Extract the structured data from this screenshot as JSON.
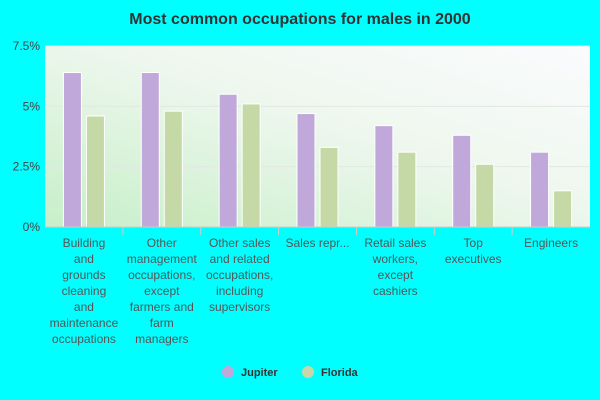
{
  "chart_data": {
    "type": "bar",
    "title": "Most common occupations for males in 2000",
    "categories": [
      [
        "Building",
        "and",
        "grounds",
        "cleaning",
        "and",
        "maintenance",
        "occupations"
      ],
      [
        "Other",
        "management",
        "occupations,",
        "except",
        "farmers and",
        "farm",
        "managers"
      ],
      [
        "Other sales",
        "and related",
        "occupations,",
        "including",
        "supervisors"
      ],
      [
        "Sales repr..."
      ],
      [
        "Retail sales",
        "workers,",
        "except",
        "cashiers"
      ],
      [
        "Top",
        "executives"
      ],
      [
        "Engineers"
      ]
    ],
    "series": [
      {
        "name": "Jupiter",
        "color": "#c0a8db",
        "values": [
          6.4,
          6.4,
          5.5,
          4.7,
          4.2,
          3.8,
          3.1
        ]
      },
      {
        "name": "Florida",
        "color": "#c4d9a6",
        "values": [
          4.6,
          4.8,
          5.1,
          3.3,
          3.1,
          2.6,
          1.5
        ]
      }
    ],
    "yticks": [
      "0%",
      "2.5%",
      "5%",
      "7.5%"
    ],
    "ytick_values": [
      0,
      2.5,
      5,
      7.5
    ],
    "ylim": [
      0,
      7.5
    ],
    "grid": true,
    "legend_position": "bottom"
  }
}
